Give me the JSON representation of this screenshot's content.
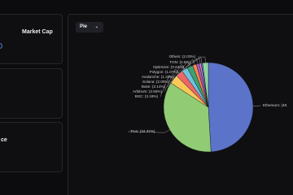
{
  "cards": [
    "Market Cap",
    "ce"
  ],
  "selector": "Pie",
  "chart_data": {
    "type": "pie",
    "values": [
      48,
      34.32,
      3.18,
      2.56,
      2.14,
      2.05,
      1.33,
      1.07,
      0.64,
      0.5,
      2.03
    ],
    "value_labels": [
      "Ethereum: (48.",
      "Tron: (34.32%)",
      "BSC: (3.18%)",
      "Arbitrum: (2.56%)",
      "Base: (2.14%)",
      "Solana: (2.05%)",
      "Avalanche: (1.33%)",
      "Polygon: (1.07%)",
      "Optimism: (0.64%)",
      "TON: (0.5%)",
      "Others: (2.03%)"
    ],
    "colors": [
      "#5b73c9",
      "#91cc75",
      "#fac858",
      "#ee6666",
      "#73c0de",
      "#3ba272",
      "#fc8452",
      "#9a60b4",
      "#ea7ccc",
      "#5470c6",
      "#8fd3a0"
    ]
  }
}
